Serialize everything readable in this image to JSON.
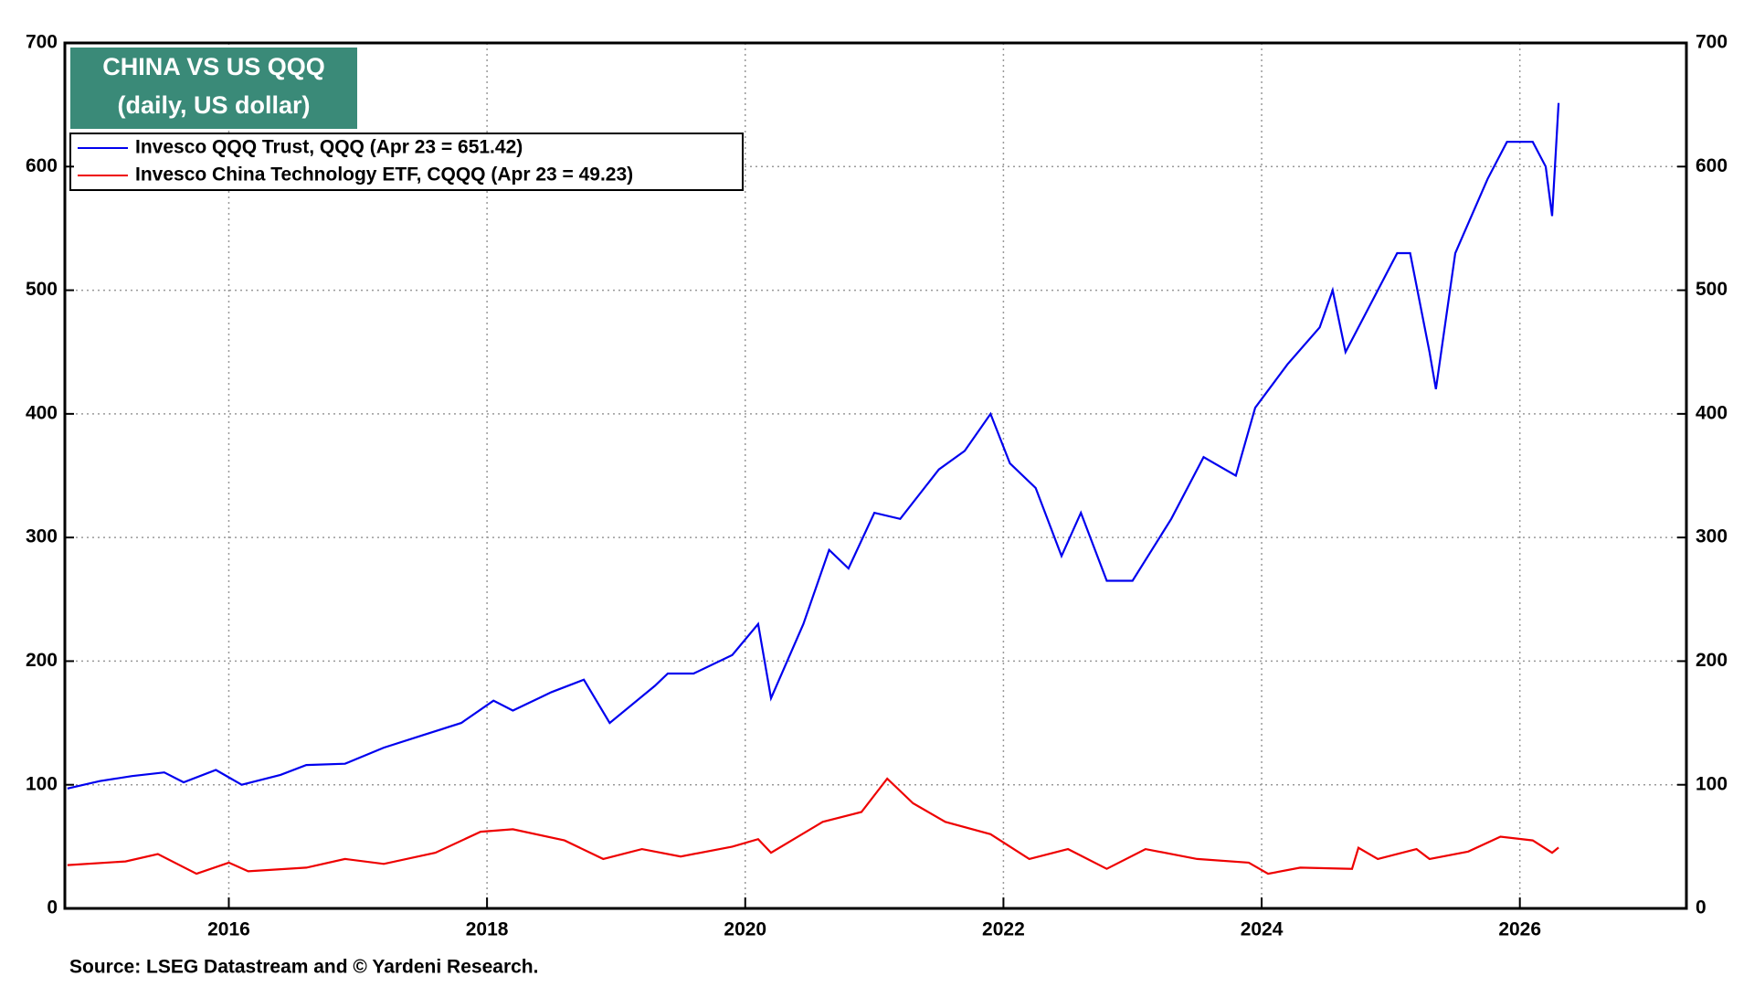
{
  "chart_data": {
    "type": "line",
    "title": "CHINA VS US QQQ",
    "subtitle": "(daily, US dollar)",
    "source": "Source: LSEG Datastream and © Yardeni Research.",
    "xlim": [
      2014.73,
      2027.29
    ],
    "xticks": [
      2016,
      2018,
      2020,
      2022,
      2024,
      2026
    ],
    "ylim": [
      0,
      700
    ],
    "yticks": [
      0,
      100,
      200,
      300,
      400,
      500,
      600,
      700
    ],
    "y2lim": [
      0,
      700
    ],
    "y2ticks": [
      0,
      100,
      200,
      300,
      400,
      500,
      600,
      700
    ],
    "grid": true,
    "legend": "upper left",
    "series": [
      {
        "name": "Invesco QQQ Trust, QQQ (Apr 23 = 651.42)",
        "color": "#0000ee",
        "x": [
          2014.75,
          2015.0,
          2015.25,
          2015.5,
          2015.65,
          2015.9,
          2016.1,
          2016.4,
          2016.6,
          2016.9,
          2017.2,
          2017.5,
          2017.8,
          2018.05,
          2018.2,
          2018.5,
          2018.75,
          2018.95,
          2019.3,
          2019.4,
          2019.6,
          2019.9,
          2020.1,
          2020.2,
          2020.45,
          2020.65,
          2020.8,
          2021.0,
          2021.2,
          2021.5,
          2021.7,
          2021.9,
          2022.05,
          2022.25,
          2022.45,
          2022.6,
          2022.8,
          2023.0,
          2023.3,
          2023.55,
          2023.8,
          2023.95,
          2024.2,
          2024.45,
          2024.55,
          2024.65,
          2024.9,
          2025.05,
          2025.15,
          2025.3,
          2025.35,
          2025.5,
          2025.75,
          2025.9,
          2026.1,
          2026.2,
          2026.25,
          2026.3
        ],
        "values": [
          97,
          103,
          107,
          110,
          102,
          112,
          100,
          108,
          116,
          117,
          130,
          140,
          150,
          168,
          160,
          175,
          185,
          150,
          180,
          190,
          190,
          205,
          230,
          170,
          230,
          290,
          275,
          320,
          315,
          355,
          370,
          400,
          360,
          340,
          285,
          320,
          265,
          265,
          315,
          365,
          350,
          405,
          440,
          470,
          500,
          450,
          500,
          530,
          530,
          450,
          420,
          530,
          590,
          620,
          620,
          600,
          560,
          651.42
        ]
      },
      {
        "name": "Invesco China Technology ETF, CQQQ (Apr 23 = 49.23)",
        "color": "#ee0000",
        "x": [
          2014.75,
          2015.2,
          2015.45,
          2015.75,
          2016.0,
          2016.15,
          2016.6,
          2016.9,
          2017.2,
          2017.6,
          2017.95,
          2018.2,
          2018.6,
          2018.9,
          2019.2,
          2019.5,
          2019.9,
          2020.1,
          2020.2,
          2020.6,
          2020.9,
          2021.1,
          2021.3,
          2021.55,
          2021.9,
          2022.2,
          2022.5,
          2022.8,
          2023.1,
          2023.5,
          2023.9,
          2024.05,
          2024.3,
          2024.7,
          2024.75,
          2024.9,
          2025.2,
          2025.3,
          2025.6,
          2025.85,
          2026.1,
          2026.25,
          2026.3
        ],
        "values": [
          35,
          38,
          44,
          28,
          37,
          30,
          33,
          40,
          36,
          45,
          62,
          64,
          55,
          40,
          48,
          42,
          50,
          56,
          45,
          70,
          78,
          105,
          85,
          70,
          60,
          40,
          48,
          32,
          48,
          40,
          37,
          28,
          33,
          32,
          49,
          40,
          48,
          40,
          46,
          58,
          55,
          45,
          49.23
        ]
      }
    ]
  }
}
